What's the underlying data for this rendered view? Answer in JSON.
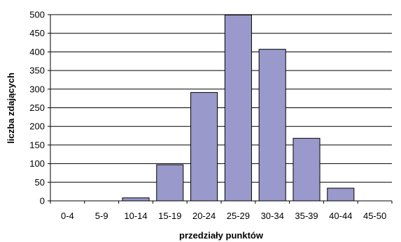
{
  "chart_data": {
    "type": "bar",
    "title": "",
    "xlabel": "przedziały punktów",
    "ylabel": "liczba zdających",
    "categories": [
      "0-4",
      "5-9",
      "10-14",
      "15-19",
      "20-24",
      "25-29",
      "30-34",
      "35-39",
      "40-44",
      "45-50"
    ],
    "values": [
      0,
      0,
      8,
      97,
      291,
      499,
      407,
      168,
      34,
      0
    ],
    "ylim": [
      0,
      500
    ],
    "yticks": [
      "0",
      "50",
      "100",
      "150",
      "200",
      "250",
      "300",
      "350",
      "400",
      "450",
      "500"
    ],
    "grid": true,
    "legend": "none",
    "bar_color": "#9999cc",
    "bar_border_color": "#000000"
  }
}
